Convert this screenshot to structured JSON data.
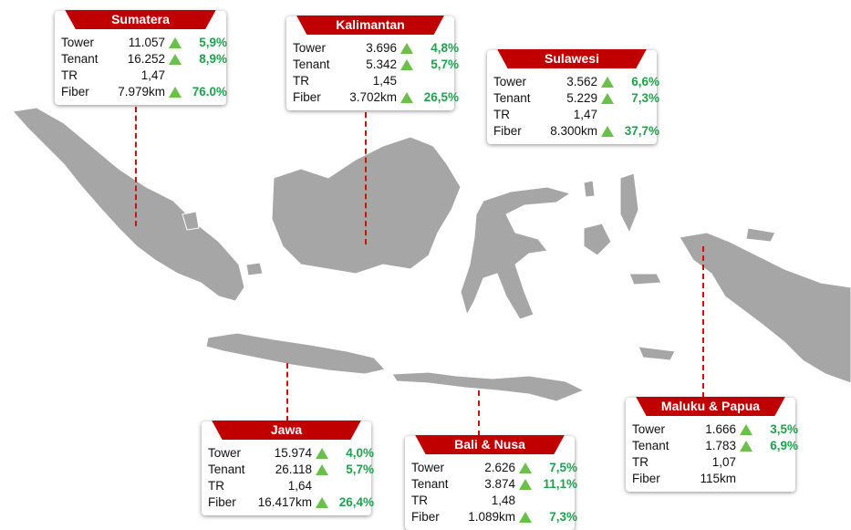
{
  "regions": [
    {
      "name": "Sumatera",
      "rows": [
        {
          "label": "Tower",
          "value": "11.057",
          "change": "5,9%"
        },
        {
          "label": "Tenant",
          "value": "16.252",
          "change": "8,9%"
        },
        {
          "label": "TR",
          "value": "1,47"
        },
        {
          "label": "Fiber",
          "value": "7.979km",
          "change": "76.0%"
        }
      ]
    },
    {
      "name": "Kalimantan",
      "rows": [
        {
          "label": "Tower",
          "value": "3.696",
          "change": "4,8%"
        },
        {
          "label": "Tenant",
          "value": "5.342",
          "change": "5,7%"
        },
        {
          "label": "TR",
          "value": "1,45"
        },
        {
          "label": "Fiber",
          "value": "3.702km",
          "change": "26,5%"
        }
      ]
    },
    {
      "name": "Sulawesi",
      "rows": [
        {
          "label": "Tower",
          "value": "3.562",
          "change": "6,6%"
        },
        {
          "label": "Tenant",
          "value": "5.229",
          "change": "7,3%"
        },
        {
          "label": "TR",
          "value": "1,47"
        },
        {
          "label": "Fiber",
          "value": "8.300km",
          "change": "37,7%"
        }
      ]
    },
    {
      "name": "Jawa",
      "rows": [
        {
          "label": "Tower",
          "value": "15.974",
          "change": "4,0%"
        },
        {
          "label": "Tenant",
          "value": "26.118",
          "change": "5,7%"
        },
        {
          "label": "TR",
          "value": "1,64"
        },
        {
          "label": "Fiber",
          "value": "16.417km",
          "change": "26,4%"
        }
      ]
    },
    {
      "name": "Bali & Nusa",
      "rows": [
        {
          "label": "Tower",
          "value": "2.626",
          "change": "7,5%"
        },
        {
          "label": "Tenant",
          "value": "3.874",
          "change": "11,1%"
        },
        {
          "label": "TR",
          "value": "1,48"
        },
        {
          "label": "Fiber",
          "value": "1.089km",
          "change": "7,3%"
        }
      ]
    },
    {
      "name": "Maluku & Papua",
      "rows": [
        {
          "label": "Tower",
          "value": "1.666",
          "change": "3,5%"
        },
        {
          "label": "Tenant",
          "value": "1.783",
          "change": "6,9%"
        },
        {
          "label": "TR",
          "value": "1,07"
        },
        {
          "label": "Fiber",
          "value": "115km"
        }
      ]
    }
  ]
}
